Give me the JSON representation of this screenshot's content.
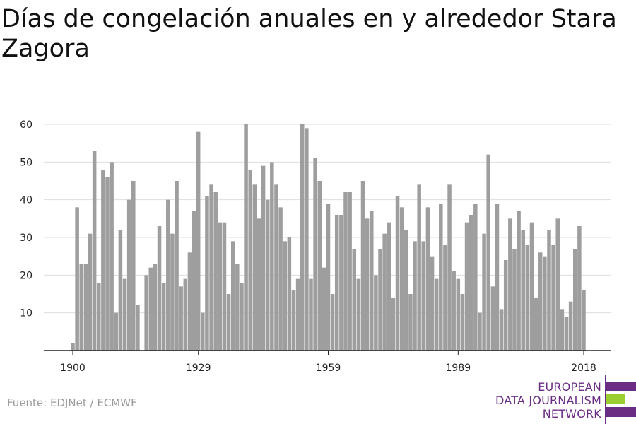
{
  "chart_data": {
    "type": "bar",
    "title": "Días de congelación anuales en y alrededor Stara Zagora",
    "xlabel": "",
    "ylabel": "",
    "x_ticks": [
      1900,
      1929,
      1959,
      1989,
      2018
    ],
    "y_ticks": [
      10,
      20,
      30,
      40,
      50,
      60
    ],
    "ylim": [
      0,
      60
    ],
    "xlim": [
      1900,
      2018
    ],
    "grid": true,
    "bar_color": "#9e9e9e",
    "series": [
      {
        "x": [
          1900,
          1901,
          1902,
          1903,
          1904,
          1905,
          1906,
          1907,
          1908,
          1909,
          1910,
          1911,
          1912,
          1913,
          1914,
          1915,
          1916,
          1917,
          1918,
          1919,
          1920,
          1921,
          1922,
          1923,
          1924,
          1925,
          1926,
          1927,
          1928,
          1929,
          1930,
          1931,
          1932,
          1933,
          1934,
          1935,
          1936,
          1937,
          1938,
          1939,
          1940,
          1941,
          1942,
          1943,
          1944,
          1945,
          1946,
          1947,
          1948,
          1949,
          1950,
          1951,
          1952,
          1953,
          1954,
          1955,
          1956,
          1957,
          1958,
          1959,
          1960,
          1961,
          1962,
          1963,
          1964,
          1965,
          1966,
          1967,
          1968,
          1969,
          1970,
          1971,
          1972,
          1973,
          1974,
          1975,
          1976,
          1977,
          1978,
          1979,
          1980,
          1981,
          1982,
          1983,
          1984,
          1985,
          1986,
          1987,
          1988,
          1989,
          1990,
          1991,
          1992,
          1993,
          1994,
          1995,
          1996,
          1997,
          1998,
          1999,
          2000,
          2001,
          2002,
          2003,
          2004,
          2005,
          2006,
          2007,
          2008,
          2009,
          2010,
          2011,
          2012,
          2013,
          2014,
          2015,
          2016,
          2017,
          2018
        ],
        "values": [
          2,
          38,
          23,
          23,
          31,
          53,
          18,
          48,
          46,
          50,
          10,
          32,
          19,
          40,
          45,
          12,
          0,
          20,
          22,
          23,
          33,
          18,
          40,
          31,
          45,
          17,
          19,
          26,
          37,
          58,
          10,
          41,
          44,
          42,
          34,
          34,
          15,
          29,
          23,
          18,
          60,
          48,
          44,
          35,
          49,
          40,
          50,
          44,
          38,
          29,
          30,
          16,
          19,
          60,
          59,
          19,
          51,
          45,
          22,
          39,
          15,
          36,
          36,
          42,
          42,
          27,
          19,
          45,
          35,
          37,
          20,
          27,
          31,
          34,
          14,
          41,
          38,
          32,
          15,
          29,
          44,
          29,
          38,
          25,
          19,
          39,
          28,
          44,
          21,
          19,
          15,
          34,
          36,
          39,
          10,
          31,
          52,
          17,
          39,
          11,
          24,
          35,
          27,
          37,
          32,
          28,
          34,
          14,
          26,
          25,
          32,
          28,
          35,
          11,
          9,
          13,
          27,
          33,
          16
        ]
      }
    ]
  },
  "source": "Fuente: EDJNet / ECMWF",
  "logo": {
    "lines": [
      "EUROPEAN",
      "DATA JOURNALISM",
      "NETWORK"
    ],
    "colors": {
      "purple": "#6b2d84",
      "green": "#9acd2f"
    }
  }
}
